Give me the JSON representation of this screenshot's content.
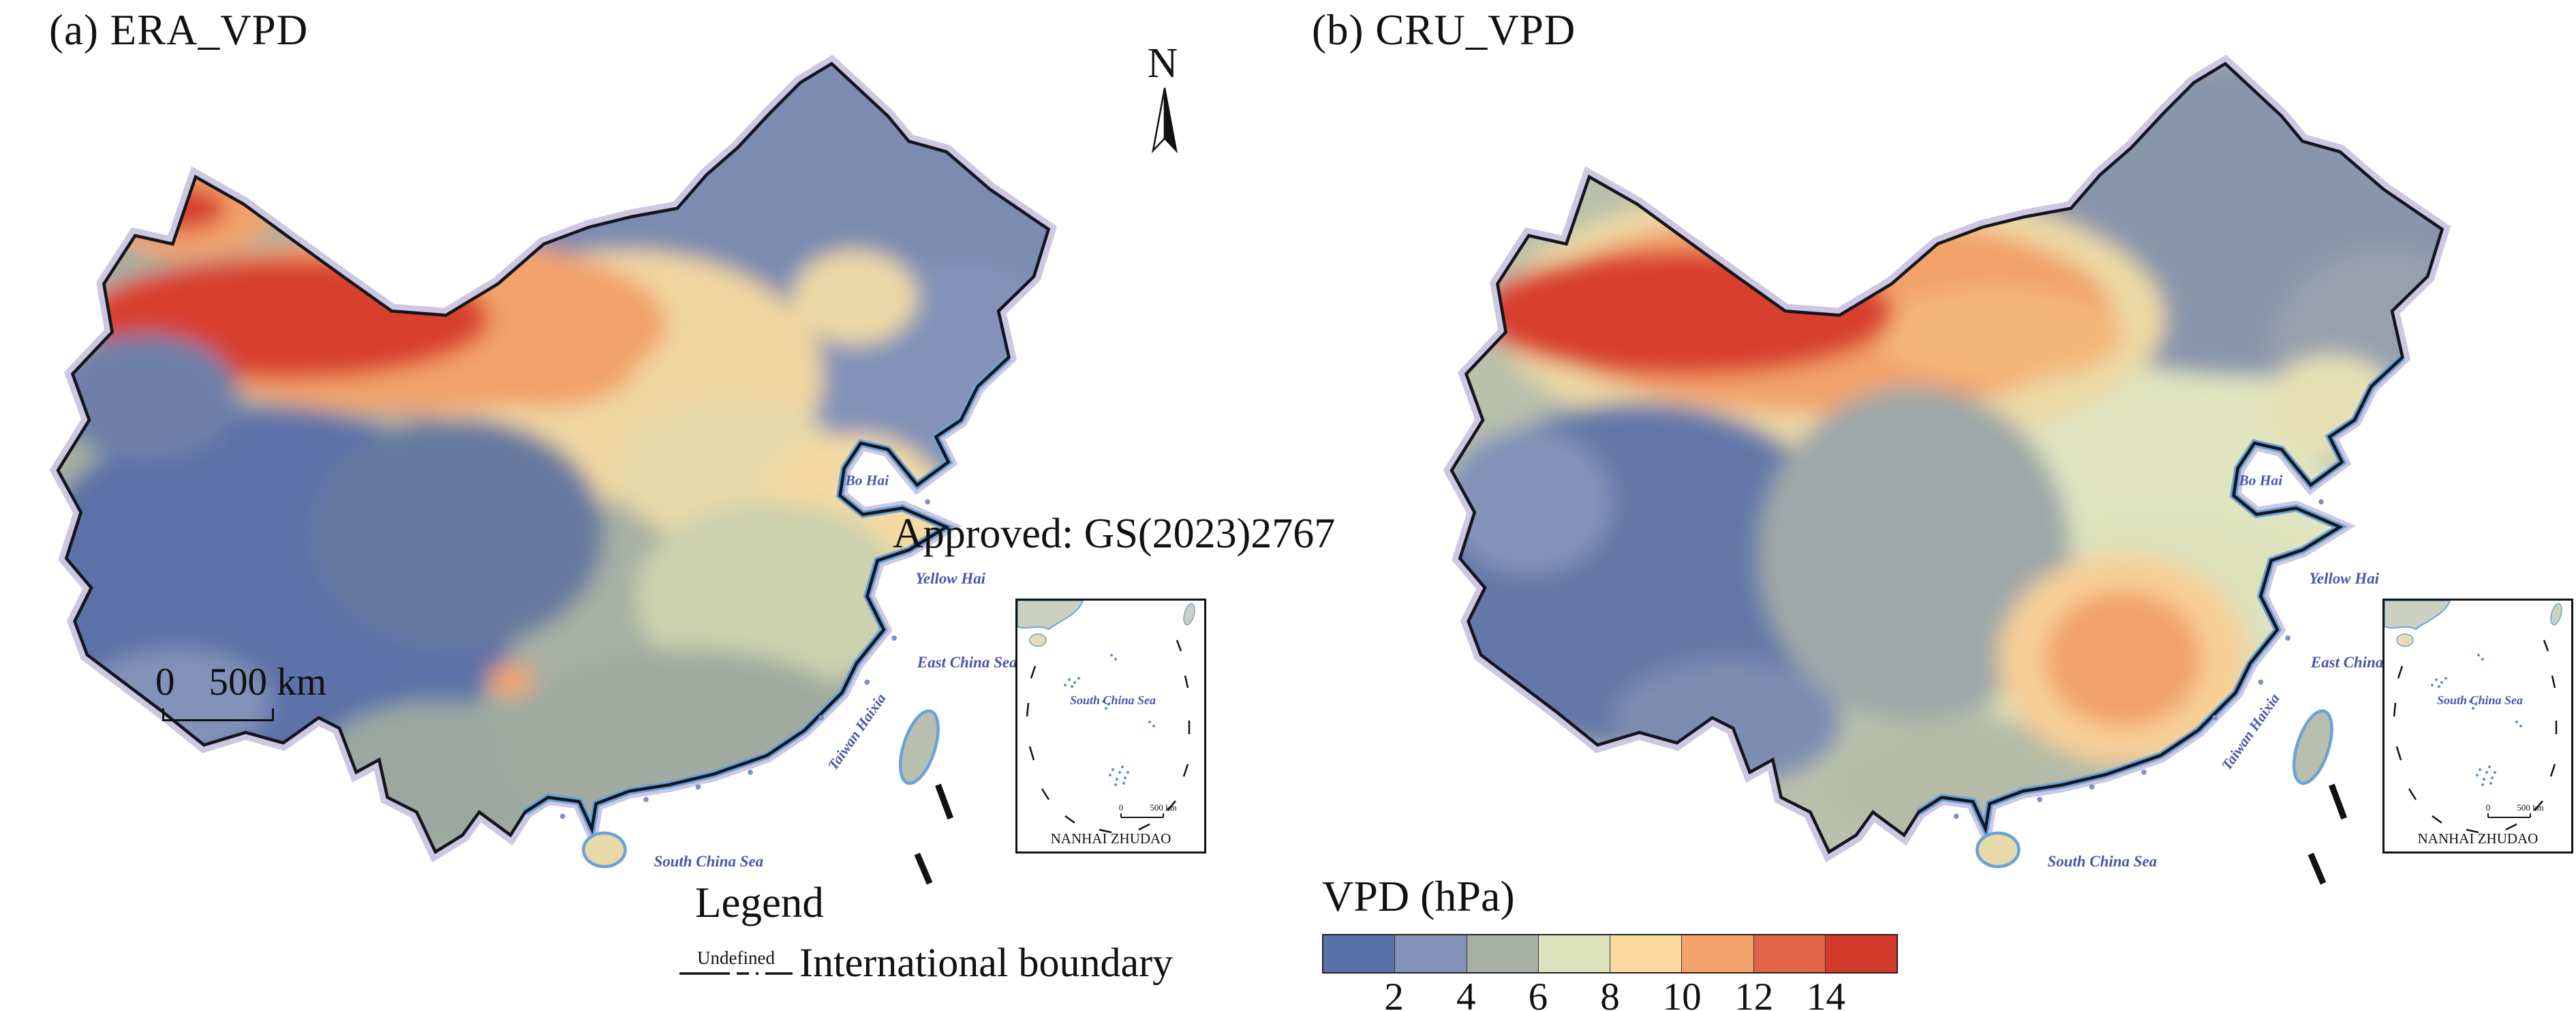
{
  "panels": {
    "a": {
      "title": "(a) ERA_VPD"
    },
    "b": {
      "title": "(b) CRU_VPD"
    }
  },
  "north": {
    "label": "N"
  },
  "approval": {
    "text": "Approved: GS(2023)2767"
  },
  "scale_bar": {
    "zero": "0",
    "distance": "500 km"
  },
  "sea_labels": {
    "bo_hai": "Bo Hai",
    "yellow_hai": "Yellow Hai",
    "east_china_sea": "East China Sea",
    "taiwan_haixia": "Taiwan Haixia",
    "south_china_sea": "South China Sea"
  },
  "inset": {
    "title": "NANHAI ZHUDAO",
    "sea_label": "South China Sea",
    "scale_zero": "0",
    "scale_distance": "500 km"
  },
  "legend": {
    "title": "Legend",
    "line_label": "Undefined",
    "boundary_label": "International boundary"
  },
  "colorbar": {
    "title": "VPD (hPa)",
    "ticks": [
      "2",
      "4",
      "6",
      "8",
      "10",
      "12",
      "14"
    ],
    "colors": [
      "#5b72a8",
      "#8292b8",
      "#a7b0a3",
      "#dbe2bc",
      "#fbd9a0",
      "#f2a26a",
      "#e2654a",
      "#d23b2c"
    ]
  },
  "map_palette": {
    "vpd_low": "#5b72a8",
    "vpd_mid_low": "#8292b8",
    "vpd_gray": "#a7b0a3",
    "vpd_mid": "#dbe2bc",
    "vpd_tan": "#fbd9a0",
    "vpd_orange": "#f2a26a",
    "vpd_high": "#e2654a",
    "vpd_max": "#d23b2c",
    "coastline": "#6aa3d8",
    "boundary": "#15151f",
    "boundary_halo": "#cdc7e2"
  }
}
